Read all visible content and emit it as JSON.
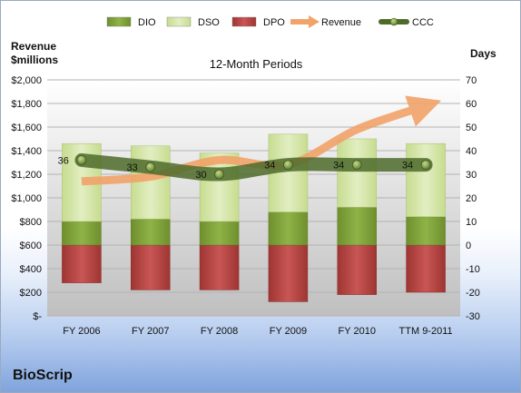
{
  "brand": "BioScrip",
  "colors": {
    "dio": "#86a93e",
    "dso": "#d4e4a8",
    "dpo": "#bd4b48",
    "revenue": "#f2a36a",
    "ccc": "#4e6b2c",
    "plot_bg_top": "#ffffff",
    "plot_bg_bottom": "#bfbfbf"
  },
  "chart_data": {
    "type": "bar",
    "title": "12-Month Periods",
    "y_left_label_line1": "Revenue",
    "y_left_label_line2": "$millions",
    "y_right_label": "Days",
    "categories": [
      "FY 2006",
      "FY 2007",
      "FY 2008",
      "FY 2009",
      "FY 2010",
      "TTM 9-2011"
    ],
    "y_left_ticks": [
      "$2,000",
      "$1,800",
      "$1,600",
      "$1,400",
      "$1,200",
      "$1,000",
      "$800",
      "$600",
      "$400",
      "$200",
      "$-"
    ],
    "y_right_ticks": [
      "70",
      "60",
      "50",
      "40",
      "30",
      "20",
      "10",
      "0",
      "-10",
      "-20",
      "-30"
    ],
    "ylim_left": [
      0,
      2000
    ],
    "ylim_right": [
      -30,
      70
    ],
    "legend": [
      "DIO",
      "DSO",
      "DPO",
      "Revenue",
      "CCC"
    ],
    "legend_position": "top",
    "series": [
      {
        "name": "DIO",
        "axis": "right",
        "kind": "stacked-bar",
        "values": [
          10,
          11,
          10,
          14,
          16,
          12
        ]
      },
      {
        "name": "DSO",
        "axis": "right",
        "kind": "stacked-bar",
        "values": [
          33,
          31,
          29,
          33,
          29,
          31
        ]
      },
      {
        "name": "DPO",
        "axis": "right",
        "kind": "negative-bar",
        "values": [
          -16,
          -19,
          -19,
          -24,
          -21,
          -20
        ]
      },
      {
        "name": "Revenue",
        "axis": "left",
        "kind": "line",
        "values": [
          1140,
          1180,
          1320,
          1280,
          1580,
          1780
        ]
      },
      {
        "name": "CCC",
        "axis": "right",
        "kind": "line",
        "values": [
          36,
          33,
          30,
          34,
          34,
          34
        ]
      }
    ],
    "ccc_labels": [
      "36",
      "33",
      "30",
      "34",
      "34",
      "34"
    ]
  }
}
